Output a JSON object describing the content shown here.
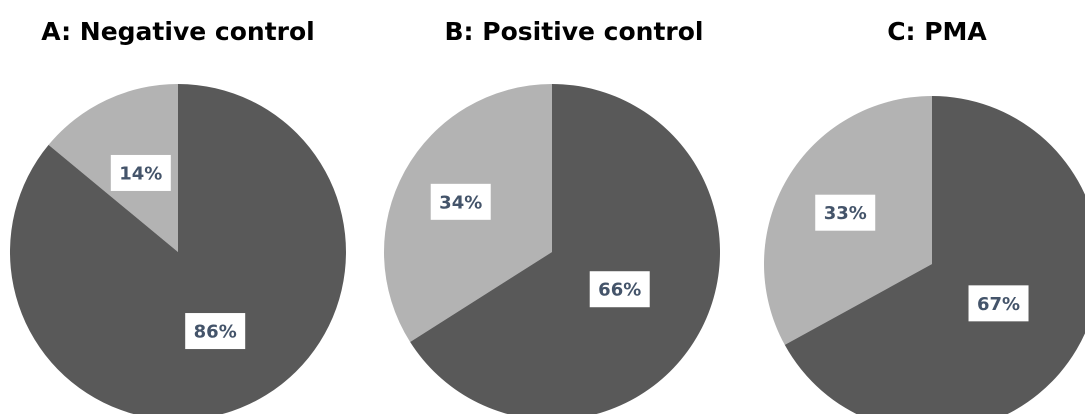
{
  "chart_data": [
    {
      "type": "pie",
      "title": "A: Negative control",
      "categories": [
        "",
        ""
      ],
      "values": [
        14,
        86
      ],
      "labels": [
        "14%",
        "86%"
      ],
      "colors": [
        "#b3b3b3",
        "#595959"
      ]
    },
    {
      "type": "pie",
      "title": "B: Positive control",
      "categories": [
        "",
        ""
      ],
      "values": [
        34,
        66
      ],
      "labels": [
        "34%",
        "66%"
      ],
      "colors": [
        "#b3b3b3",
        "#595959"
      ]
    },
    {
      "type": "pie",
      "title": "C: PMA",
      "categories": [
        "",
        ""
      ],
      "values": [
        33,
        67
      ],
      "labels": [
        "33%",
        "67%"
      ],
      "colors": [
        "#b3b3b3",
        "#595959"
      ]
    }
  ]
}
